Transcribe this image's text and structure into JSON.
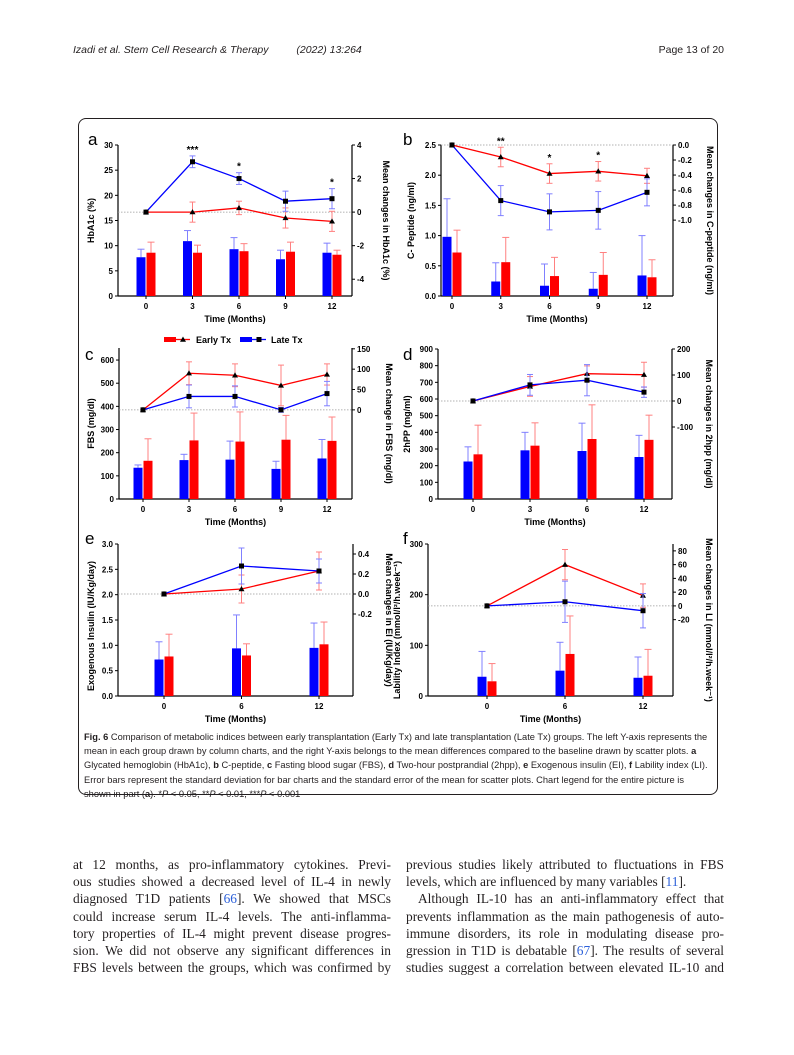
{
  "header": {
    "citation": "Izadi et al. Stem Cell Research & Therapy",
    "year_volume": "(2022) 13:264",
    "page": "Page 13 of 20"
  },
  "legend": {
    "early": "Early Tx",
    "late": "Late Tx",
    "early_color": "#ff0000",
    "late_color": "#0000ff"
  },
  "chart_data": [
    {
      "panel": "a",
      "type": "bar+line",
      "xlabel": "Time (Months)",
      "ylabel": "HbA1c (%)",
      "y2label": "Mean changes in HbA1c (%)",
      "categories": [
        "0",
        "3",
        "6",
        "9",
        "12"
      ],
      "ylim": [
        0,
        30
      ],
      "y2lim": [
        -5,
        4
      ],
      "yticks": [
        "0",
        "5",
        "10",
        "15",
        "20",
        "25",
        "30"
      ],
      "y2ticks": [
        "-4",
        "-2",
        "0",
        "2",
        "4"
      ],
      "bars": [
        {
          "name": "Late Tx",
          "values": [
            7.7,
            10.9,
            9.3,
            7.3,
            8.6
          ],
          "sd": [
            1.6,
            2.1,
            2.3,
            1.8,
            1.9
          ]
        },
        {
          "name": "Early Tx",
          "values": [
            8.6,
            8.6,
            8.9,
            8.8,
            8.2
          ],
          "sd": [
            2.1,
            1.5,
            1.5,
            1.9,
            0.9
          ]
        }
      ],
      "lines": [
        {
          "name": "Late Tx",
          "values": [
            0,
            3.0,
            2.0,
            0.65,
            0.8
          ],
          "se": [
            0,
            0.35,
            0.35,
            0.6,
            0.6
          ]
        },
        {
          "name": "Early Tx",
          "values": [
            0,
            0,
            0.25,
            -0.35,
            -0.55
          ],
          "se": [
            0,
            0.6,
            0.4,
            0.6,
            0.6
          ]
        }
      ],
      "significance": [
        "",
        "***",
        "*",
        "",
        "*"
      ]
    },
    {
      "panel": "b",
      "type": "bar+line",
      "xlabel": "Time (Months)",
      "ylabel": "C- Peptide (ng/ml)",
      "y2label": "Mean changes in C-peptide (ng/ml)",
      "categories": [
        "0",
        "3",
        "6",
        "9",
        "12"
      ],
      "ylim": [
        0,
        2.5
      ],
      "y2lim": [
        -2.01,
        0
      ],
      "yticks": [
        "0.0",
        "0.5",
        "1.0",
        "1.5",
        "2.0",
        "2.5"
      ],
      "y2ticks": [
        "0.0",
        "-0.2",
        "-0.4",
        "-0.6",
        "-0.8",
        "-1.0"
      ],
      "bars": [
        {
          "name": "Late Tx",
          "values": [
            0.98,
            0.24,
            0.17,
            0.12,
            0.34
          ],
          "sd": [
            0.63,
            0.31,
            0.36,
            0.27,
            0.66
          ]
        },
        {
          "name": "Early Tx",
          "values": [
            0.72,
            0.56,
            0.33,
            0.35,
            0.31
          ],
          "sd": [
            0.37,
            0.41,
            0.31,
            0.37,
            0.29
          ]
        }
      ],
      "lines": [
        {
          "name": "Late Tx",
          "values": [
            0,
            -0.74,
            -0.89,
            -0.87,
            -0.63
          ],
          "se": [
            0,
            0.2,
            0.24,
            0.25,
            0.18
          ]
        },
        {
          "name": "Early Tx",
          "values": [
            0,
            -0.16,
            -0.38,
            -0.35,
            -0.41
          ],
          "se": [
            0,
            0.13,
            0.13,
            0.13,
            0.1
          ]
        }
      ],
      "significance": [
        "",
        "**",
        "*",
        "*",
        ""
      ]
    },
    {
      "panel": "c",
      "type": "bar+line",
      "xlabel": "Time (Months)",
      "ylabel": "FBS (mg/dl)",
      "y2label": "Mean change in FBS (mg/dl)",
      "categories": [
        "0",
        "3",
        "6",
        "9",
        "12"
      ],
      "ylim": [
        0,
        652
      ],
      "y2lim": [
        -219,
        152
      ],
      "yticks": [
        "0",
        "100",
        "200",
        "300",
        "400",
        "500",
        "600"
      ],
      "y2ticks": [
        "0",
        "50",
        "100",
        "150"
      ],
      "bars": [
        {
          "name": "Late Tx",
          "values": [
            135,
            168,
            170,
            130,
            175
          ],
          "sd": [
            12,
            25,
            80,
            33,
            82
          ]
        },
        {
          "name": "Early Tx",
          "values": [
            165,
            253,
            248,
            256,
            251
          ],
          "sd": [
            95,
            118,
            128,
            105,
            103
          ]
        }
      ],
      "lines": [
        {
          "name": "Late Tx",
          "values": [
            0,
            33,
            33,
            0,
            40
          ],
          "se": [
            0,
            28,
            26,
            6,
            30
          ]
        },
        {
          "name": "Early Tx",
          "values": [
            0,
            90,
            85,
            60,
            87
          ],
          "se": [
            0,
            28,
            28,
            50,
            26
          ]
        }
      ],
      "significance": [
        "",
        "",
        "",
        "",
        ""
      ]
    },
    {
      "panel": "d",
      "type": "bar+line",
      "xlabel": "Time (Months)",
      "ylabel": "2hPP (mg/ml)",
      "y2label": "Mean changes in 2hpp (mg/dl)",
      "categories": [
        "0",
        "3",
        "6",
        "12"
      ],
      "ylim": [
        0,
        900
      ],
      "y2lim": [
        -377,
        200
      ],
      "yticks": [
        "0",
        "100",
        "200",
        "300",
        "400",
        "500",
        "600",
        "700",
        "800",
        "900"
      ],
      "y2ticks": [
        "-100",
        "0",
        "100",
        "200"
      ],
      "bars": [
        {
          "name": "Late Tx",
          "values": [
            225,
            292,
            288,
            252
          ],
          "sd": [
            88,
            108,
            167,
            130
          ]
        },
        {
          "name": "Early Tx",
          "values": [
            268,
            320,
            360,
            355
          ],
          "sd": [
            175,
            137,
            205,
            148
          ]
        }
      ],
      "lines": [
        {
          "name": "Late Tx",
          "values": [
            0,
            62,
            80,
            34
          ],
          "se": [
            0,
            40,
            60,
            20
          ]
        },
        {
          "name": "Early Tx",
          "values": [
            0,
            56,
            105,
            101
          ],
          "se": [
            0,
            38,
            30,
            48
          ]
        }
      ],
      "significance": [
        "",
        "",
        "",
        ""
      ]
    },
    {
      "panel": "e",
      "type": "bar+line",
      "xlabel": "Time (Months)",
      "ylabel": "Exogenous Insulin (IU/Kg/day)",
      "y2label": "Mean changes in EI (IU/Kg/day)",
      "categories": [
        "0",
        "6",
        "12"
      ],
      "ylim": [
        0,
        3.0
      ],
      "y2lim": [
        -1.02,
        0.5
      ],
      "yticks": [
        "0.0",
        "0.5",
        "1.0",
        "1.5",
        "2.0",
        "2.5",
        "3.0"
      ],
      "y2ticks": [
        "-0.2",
        "0.0",
        "0.2",
        "0.4"
      ],
      "bars": [
        {
          "name": "Late Tx",
          "values": [
            0.72,
            0.94,
            0.95
          ],
          "sd": [
            0.35,
            0.66,
            0.49
          ]
        },
        {
          "name": "Early Tx",
          "values": [
            0.78,
            0.8,
            1.02
          ],
          "sd": [
            0.44,
            0.23,
            0.44
          ]
        }
      ],
      "lines": [
        {
          "name": "Late Tx",
          "values": [
            0,
            0.28,
            0.23
          ],
          "se": [
            0,
            0.18,
            0.12
          ]
        },
        {
          "name": "Early Tx",
          "values": [
            0,
            0.05,
            0.23
          ],
          "se": [
            0,
            0.14,
            0.19
          ]
        }
      ],
      "significance": [
        "",
        "",
        ""
      ]
    },
    {
      "panel": "f",
      "type": "bar+line",
      "xlabel": "Time (Months)",
      "ylabel": "Lability Index (mmol/l²/h.week⁻¹)",
      "y2label": "Mean changes in LI (mmol/l²/h.week⁻¹)",
      "categories": [
        "0",
        "6",
        "12"
      ],
      "ylim": [
        0,
        300
      ],
      "y2lim": [
        -131,
        90
      ],
      "yticks": [
        "0",
        "100",
        "200",
        "300"
      ],
      "y2ticks": [
        "-20",
        "0",
        "20",
        "40",
        "60",
        "80"
      ],
      "bars": [
        {
          "name": "Late Tx",
          "values": [
            38,
            50,
            36
          ],
          "sd": [
            50,
            56,
            41
          ]
        },
        {
          "name": "Early Tx",
          "values": [
            29,
            83,
            40
          ],
          "sd": [
            35,
            75,
            52
          ]
        }
      ],
      "lines": [
        {
          "name": "Late Tx",
          "values": [
            0,
            6,
            -7
          ],
          "se": [
            0,
            30,
            25
          ]
        },
        {
          "name": "Early Tx",
          "values": [
            0,
            60,
            15
          ],
          "se": [
            0,
            22,
            17
          ]
        }
      ],
      "significance": [
        "",
        "",
        ""
      ]
    }
  ],
  "caption": {
    "parts": [
      {
        "t": "Fig. 6",
        "b": true
      },
      {
        "t": "  Comparison of metabolic indices between early transplantation (Early Tx) and late transplantation (Late Tx) groups. The left Y-axis represents the mean in each group drawn by column charts, and the right Y-axis belongs to the mean differences compared to the baseline drawn by scatter plots. "
      },
      {
        "t": "a",
        "b": true
      },
      {
        "t": " Glycated hemoglobin (HbA1c), "
      },
      {
        "t": "b",
        "b": true
      },
      {
        "t": " C-peptide, "
      },
      {
        "t": "c",
        "b": true
      },
      {
        "t": " Fasting blood sugar (FBS), "
      },
      {
        "t": "d",
        "b": true
      },
      {
        "t": " Two-hour postprandial (2hpp), "
      },
      {
        "t": "e",
        "b": true
      },
      {
        "t": " Exogenous insulin (EI), "
      },
      {
        "t": "f",
        "b": true
      },
      {
        "t": " Lability index (LI). Error bars represent the standard deviation for bar charts and the standard error of the mean for scatter plots. Chart legend for the entire picture is shown in part ("
      },
      {
        "t": "a",
        "b": true
      },
      {
        "t": "). *"
      },
      {
        "t": "P",
        "i": true
      },
      {
        "t": " < 0.05, **"
      },
      {
        "t": "P",
        "i": true
      },
      {
        "t": " < 0.01, ***"
      },
      {
        "t": "P",
        "i": true
      },
      {
        "t": " < 0.001"
      }
    ]
  },
  "body": {
    "left": [
      {
        "pre": "at 12 months, as pro-inflammatory cytokines. Previ-"
      },
      {
        "pre": "ous studies showed a decreased level of IL-4 in newly"
      },
      {
        "pre": "diagnosed T1D patients [",
        "ref": "66",
        "post": "]. We showed that MSCs"
      },
      {
        "pre": "could increase serum IL-4 levels. The anti-inflamma-"
      },
      {
        "pre": "tory properties of IL-4 might prevent disease progres-"
      },
      {
        "pre": "sion. We did not observe any significant differences in"
      },
      {
        "pre": "FBS levels between the groups, which was confirmed by"
      }
    ],
    "right": [
      {
        "pre": "previous studies likely attributed to fluctuations in FBS"
      },
      {
        "pre": "levels, which are influenced by many variables [",
        "ref": "11",
        "post": "].",
        "last": true
      },
      {
        "pre": "Although IL-10 has an anti-inflammatory effect that",
        "indent": true
      },
      {
        "pre": "prevents inflammation as the main pathogenesis of auto-"
      },
      {
        "pre": "immune disorders, its role in modulating disease pro-"
      },
      {
        "pre": "gression in T1D is debatable [",
        "ref": "67",
        "post": "]. The results of several"
      },
      {
        "pre": "studies suggest a correlation between elevated IL-10 and"
      }
    ]
  }
}
